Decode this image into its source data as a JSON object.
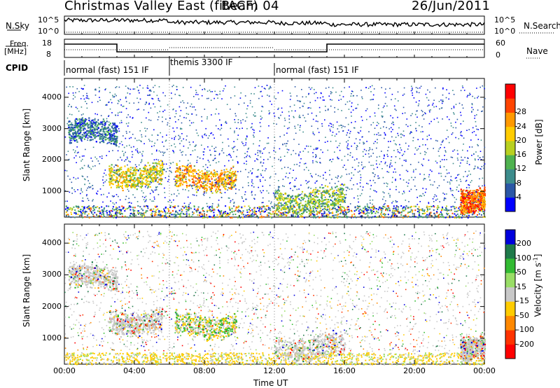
{
  "header": {
    "title": "Christmas Valley East (fitACF)",
    "beam": "Beam 04",
    "date": "26/Jun/2011"
  },
  "panels": {
    "sky": {
      "label": "N.Sky",
      "left_ticks": [
        "10^5",
        "10^0"
      ],
      "right_ticks": [
        "10^5",
        "10^0"
      ],
      "right_label": "N.Search"
    },
    "freq": {
      "label": "Freq.",
      "unit": "[MHz]",
      "left_ticks": [
        "18",
        "8"
      ],
      "right_ticks": [
        "60",
        "0"
      ],
      "right_label": "Nave"
    },
    "cpid": {
      "label": "CPID",
      "segments": [
        "normal (fast) 151 IF",
        "themis 3300 IF",
        "normal (fast) 151 IF"
      ]
    }
  },
  "colors": {
    "gs_gray": "#c8c8c8",
    "power_scale": [
      "#0000ff",
      "#2b57a6",
      "#3c8c8c",
      "#4fb24f",
      "#b8d020",
      "#ffcc00",
      "#ff9900",
      "#ff4400",
      "#ff0000"
    ],
    "velocity_scale": [
      "#0000dd",
      "#1f7a4a",
      "#33bb33",
      "#99dd66",
      "#c8c8c8",
      "#ffcc00",
      "#ff8800",
      "#ff3300",
      "#ff0000"
    ]
  },
  "chart_data": [
    {
      "type": "heatmap",
      "name": "power",
      "ylabel": "Slant Range [km]",
      "yticks": [
        "1000",
        "2000",
        "3000",
        "4000"
      ],
      "ylim": [
        180,
        4600
      ],
      "colorbar_label": "Power [dB]",
      "colorbar_ticks": [
        "4",
        "8",
        "12",
        "16",
        "20",
        "24",
        "28"
      ],
      "features": [
        {
          "t0": 0.2,
          "t1": 3.0,
          "r": 2900,
          "level": 3
        },
        {
          "t0": 2.5,
          "t1": 5.6,
          "r": 1550,
          "level": 6
        },
        {
          "t0": 6.3,
          "t1": 9.8,
          "r": 1450,
          "level": 7
        },
        {
          "t0": 12.0,
          "t1": 16.0,
          "r": 750,
          "level": 5
        },
        {
          "t0": 22.6,
          "t1": 24.0,
          "r": 800,
          "level": 8
        }
      ]
    },
    {
      "type": "heatmap",
      "name": "velocity",
      "ylabel": "Slant Range [km]",
      "yticks": [
        "1000",
        "2000",
        "3000",
        "4000"
      ],
      "ylim": [
        180,
        4600
      ],
      "colorbar_label": "Velocity [m s^-1]",
      "colorbar_ticks": [
        "200",
        "100",
        "50",
        "15",
        "-15",
        "-50",
        "-100",
        "-200"
      ],
      "xlabel": "Time UT",
      "xticks": [
        "00:00",
        "04:00",
        "08:00",
        "12:00",
        "16:00",
        "20:00",
        "00:00"
      ],
      "xlim": [
        0,
        24
      ]
    }
  ]
}
